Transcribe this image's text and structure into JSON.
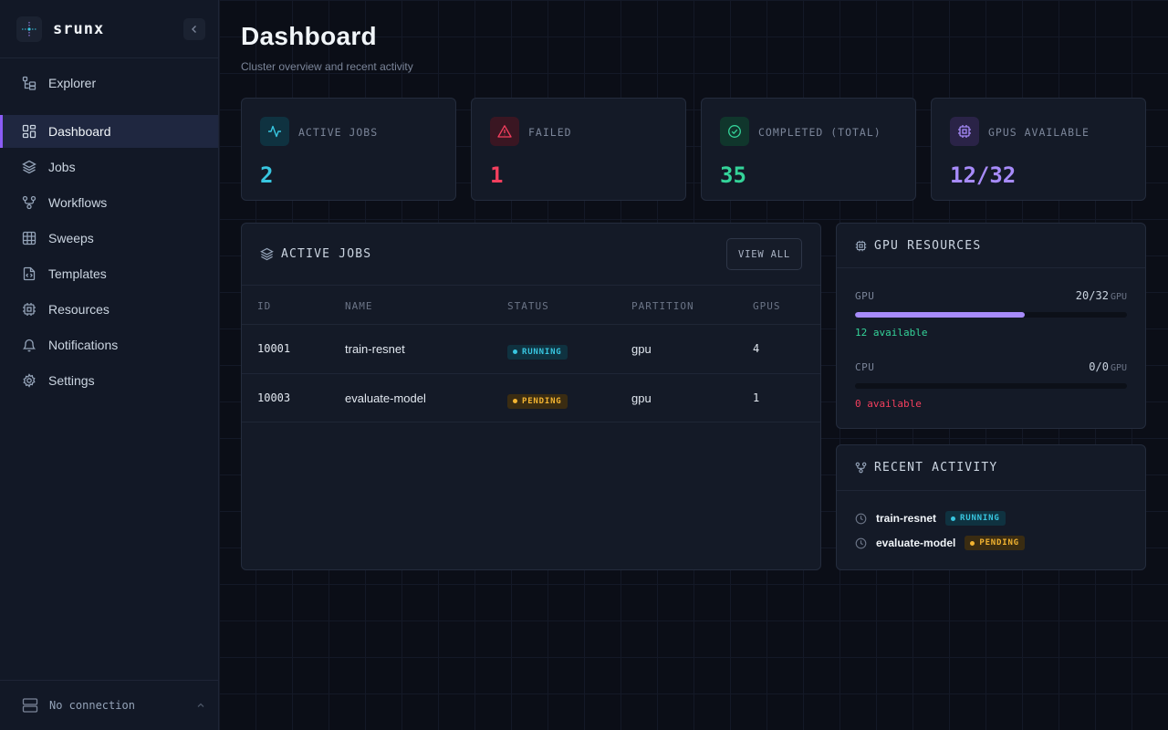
{
  "app": {
    "name": "srunx"
  },
  "sidebar": {
    "items": [
      {
        "label": "Explorer",
        "icon": "folder-tree-icon"
      },
      {
        "label": "Dashboard",
        "icon": "dashboard-icon"
      },
      {
        "label": "Jobs",
        "icon": "layers-icon"
      },
      {
        "label": "Workflows",
        "icon": "workflow-icon"
      },
      {
        "label": "Sweeps",
        "icon": "grid-icon"
      },
      {
        "label": "Templates",
        "icon": "file-code-icon"
      },
      {
        "label": "Resources",
        "icon": "cpu-icon"
      },
      {
        "label": "Notifications",
        "icon": "bell-icon"
      },
      {
        "label": "Settings",
        "icon": "gear-icon"
      }
    ],
    "active": "Dashboard",
    "connection": "No connection"
  },
  "page": {
    "title": "Dashboard",
    "subtitle": "Cluster overview and recent activity"
  },
  "stats": [
    {
      "label": "ACTIVE JOBS",
      "value": "2",
      "color": "#38c6e0",
      "icon": "activity-icon"
    },
    {
      "label": "FAILED",
      "value": "1",
      "color": "#f43f5e",
      "icon": "alert-triangle-icon"
    },
    {
      "label": "COMPLETED (TOTAL)",
      "value": "35",
      "color": "#34d399",
      "icon": "check-circle-icon"
    },
    {
      "label": "GPUS AVAILABLE",
      "value": "12/32",
      "color": "#a78bfa",
      "icon": "chip-icon"
    }
  ],
  "active_jobs": {
    "title": "ACTIVE JOBS",
    "view_all": "VIEW ALL",
    "columns": [
      "ID",
      "NAME",
      "STATUS",
      "PARTITION",
      "GPUS"
    ],
    "rows": [
      {
        "id": "10001",
        "name": "train-resnet",
        "status": "RUNNING",
        "partition": "gpu",
        "gpus": "4"
      },
      {
        "id": "10003",
        "name": "evaluate-model",
        "status": "PENDING",
        "partition": "gpu",
        "gpus": "1"
      }
    ]
  },
  "gpu_resources": {
    "title": "GPU RESOURCES",
    "gpu": {
      "label": "GPU",
      "used": "20",
      "total": "32",
      "unit": "GPU",
      "fraction": 0.625,
      "available": "12 available"
    },
    "cpu": {
      "label": "CPU",
      "used": "0",
      "total": "0",
      "unit": "GPU",
      "fraction": 0,
      "available": "0 available"
    }
  },
  "recent_activity": {
    "title": "RECENT ACTIVITY",
    "items": [
      {
        "name": "train-resnet",
        "status": "RUNNING"
      },
      {
        "name": "evaluate-model",
        "status": "PENDING"
      }
    ]
  },
  "colors": {
    "accent": "#8b5cf6",
    "running": "#38c6e0",
    "pending": "#f3b431",
    "available_ok": "#34d399",
    "available_none": "#f43f5e"
  }
}
